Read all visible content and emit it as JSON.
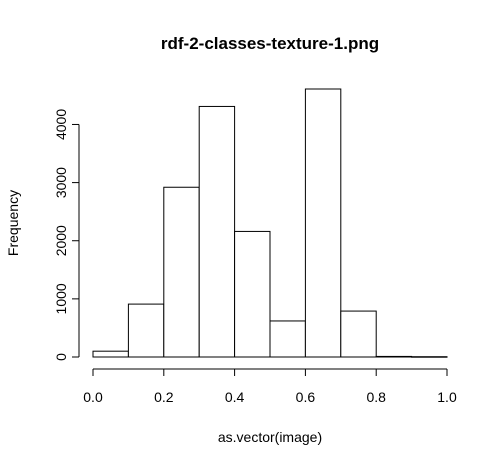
{
  "chart_data": {
    "type": "bar",
    "subtype": "histogram",
    "title": "rdf-2-classes-texture-1.png",
    "xlabel": "as.vector(image)",
    "ylabel": "Frequency",
    "bin_edges": [
      0.0,
      0.1,
      0.2,
      0.3,
      0.4,
      0.5,
      0.6,
      0.7,
      0.8,
      0.9,
      1.0
    ],
    "values": [
      100,
      910,
      2920,
      4310,
      2160,
      620,
      4610,
      790,
      10,
      5
    ],
    "xlim": [
      0,
      1
    ],
    "ylim": [
      0,
      4610
    ],
    "x_ticks": [
      0.0,
      0.2,
      0.4,
      0.6,
      0.8,
      1.0
    ],
    "x_tick_labels": [
      "0.0",
      "0.2",
      "0.4",
      "0.6",
      "0.8",
      "1.0"
    ],
    "y_ticks": [
      0,
      1000,
      2000,
      3000,
      4000
    ],
    "y_tick_labels": [
      "0",
      "1000",
      "2000",
      "3000",
      "4000"
    ],
    "grid": false,
    "legend": "none",
    "bar_fill": "#ffffff",
    "bar_stroke": "#000000"
  }
}
